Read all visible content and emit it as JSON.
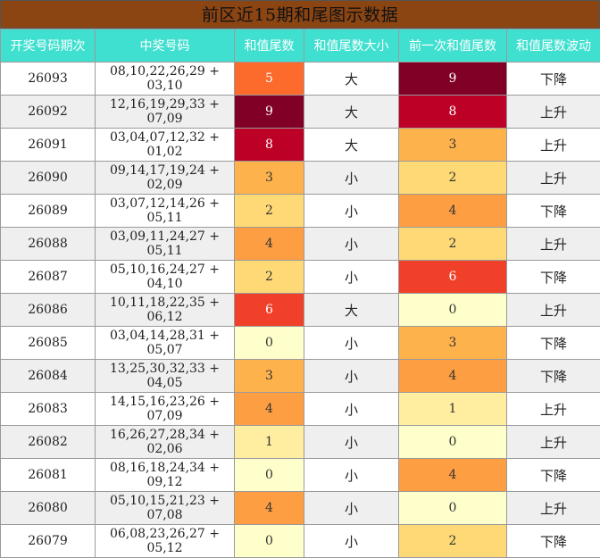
{
  "title": "前区近15期和尾图示数据",
  "columns": [
    "开奖号码期次",
    "中奖号码",
    "和值尾数",
    "和值尾数大小",
    "前一次和值尾数",
    "和值尾数波动"
  ],
  "heat_colors": {
    "0": "#ffffcc",
    "1": "#ffeda0",
    "2": "#fed976",
    "3": "#feb24c",
    "4": "#fd9e43",
    "5": "#fc6b2c",
    "6": "#f0402a",
    "7": "#d7191c",
    "8": "#bd0026",
    "9": "#800026"
  },
  "rows": [
    {
      "issue": "26093",
      "numbers": "08,10,22,26,29 + 03,10",
      "tail": 5,
      "size": "大",
      "prev_tail": 9,
      "trend": "下降"
    },
    {
      "issue": "26092",
      "numbers": "12,16,19,29,33 + 07,09",
      "tail": 9,
      "size": "大",
      "prev_tail": 8,
      "trend": "上升"
    },
    {
      "issue": "26091",
      "numbers": "03,04,07,12,32 + 01,02",
      "tail": 8,
      "size": "大",
      "prev_tail": 3,
      "trend": "上升"
    },
    {
      "issue": "26090",
      "numbers": "09,14,17,19,24 + 02,09",
      "tail": 3,
      "size": "小",
      "prev_tail": 2,
      "trend": "上升"
    },
    {
      "issue": "26089",
      "numbers": "03,07,12,14,26 + 05,11",
      "tail": 2,
      "size": "小",
      "prev_tail": 4,
      "trend": "下降"
    },
    {
      "issue": "26088",
      "numbers": "03,09,11,24,27 + 05,11",
      "tail": 4,
      "size": "小",
      "prev_tail": 2,
      "trend": "上升"
    },
    {
      "issue": "26087",
      "numbers": "05,10,16,24,27 + 04,10",
      "tail": 2,
      "size": "小",
      "prev_tail": 6,
      "trend": "下降"
    },
    {
      "issue": "26086",
      "numbers": "10,11,18,22,35 + 06,12",
      "tail": 6,
      "size": "大",
      "prev_tail": 0,
      "trend": "上升"
    },
    {
      "issue": "26085",
      "numbers": "03,04,14,28,31 + 05,07",
      "tail": 0,
      "size": "小",
      "prev_tail": 3,
      "trend": "下降"
    },
    {
      "issue": "26084",
      "numbers": "13,25,30,32,33 + 04,05",
      "tail": 3,
      "size": "小",
      "prev_tail": 4,
      "trend": "下降"
    },
    {
      "issue": "26083",
      "numbers": "14,15,16,23,26 + 07,09",
      "tail": 4,
      "size": "小",
      "prev_tail": 1,
      "trend": "上升"
    },
    {
      "issue": "26082",
      "numbers": "16,26,27,28,34 + 02,06",
      "tail": 1,
      "size": "小",
      "prev_tail": 0,
      "trend": "上升"
    },
    {
      "issue": "26081",
      "numbers": "08,16,18,24,34 + 09,12",
      "tail": 0,
      "size": "小",
      "prev_tail": 4,
      "trend": "下降"
    },
    {
      "issue": "26080",
      "numbers": "05,10,15,21,23 + 07,08",
      "tail": 4,
      "size": "小",
      "prev_tail": 0,
      "trend": "上升"
    },
    {
      "issue": "26079",
      "numbers": "06,08,23,26,27 + 05,12",
      "tail": 0,
      "size": "小",
      "prev_tail": 2,
      "trend": "下降"
    }
  ]
}
